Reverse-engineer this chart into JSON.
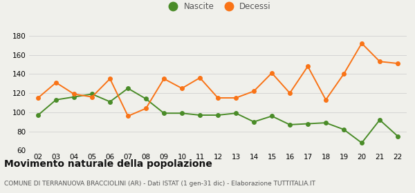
{
  "years": [
    "02",
    "03",
    "04",
    "05",
    "06",
    "07",
    "08",
    "09",
    "10",
    "11",
    "12",
    "13",
    "14",
    "15",
    "16",
    "17",
    "18",
    "19",
    "20",
    "21",
    "22"
  ],
  "nascite": [
    97,
    113,
    116,
    119,
    111,
    125,
    114,
    99,
    99,
    97,
    97,
    99,
    90,
    96,
    87,
    88,
    89,
    82,
    68,
    92,
    75
  ],
  "decessi": [
    115,
    131,
    119,
    116,
    135,
    96,
    104,
    135,
    125,
    136,
    115,
    115,
    122,
    141,
    120,
    148,
    113,
    140,
    172,
    153,
    151
  ],
  "nascite_color": "#4a8c28",
  "decessi_color": "#f97316",
  "background_color": "#f0f0eb",
  "grid_color": "#d0d0d0",
  "ylim": [
    60,
    185
  ],
  "yticks": [
    60,
    80,
    100,
    120,
    140,
    160,
    180
  ],
  "title": "Movimento naturale della popolazione",
  "subtitle": "COMUNE DI TERRANUOVA BRACCIOLINI (AR) - Dati ISTAT (1 gen-31 dic) - Elaborazione TUTTITALIA.IT",
  "legend_nascite": "Nascite",
  "legend_decessi": "Decessi",
  "marker_size": 4,
  "line_width": 1.4,
  "title_fontsize": 10,
  "subtitle_fontsize": 6.5,
  "tick_fontsize": 7.5,
  "legend_fontsize": 8.5
}
